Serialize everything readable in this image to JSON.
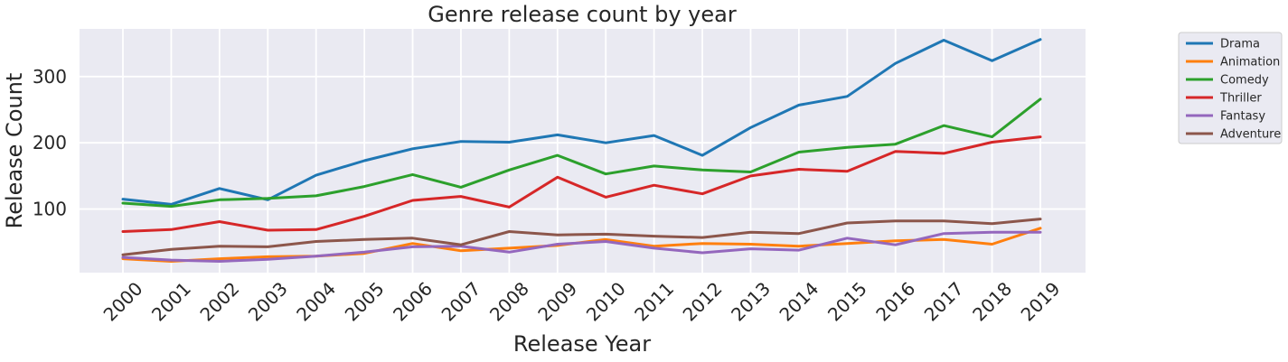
{
  "chart_data": {
    "type": "line",
    "title": "Genre release count by year",
    "xlabel": "Release Year",
    "ylabel": "Release Count",
    "categories": [
      "2000",
      "2001",
      "2002",
      "2003",
      "2004",
      "2005",
      "2006",
      "2007",
      "2008",
      "2009",
      "2010",
      "2011",
      "2012",
      "2013",
      "2014",
      "2015",
      "2016",
      "2017",
      "2018",
      "2019"
    ],
    "yticks": [
      100,
      200,
      300
    ],
    "ylim": [
      4,
      372
    ],
    "grid": true,
    "legend_position": "outside-top-right",
    "series": [
      {
        "name": "Drama",
        "color": "#1f77b4",
        "values": [
          115,
          107,
          131,
          114,
          151,
          173,
          191,
          202,
          201,
          212,
          200,
          211,
          181,
          223,
          257,
          270,
          320,
          355,
          324,
          356
        ]
      },
      {
        "name": "Animation",
        "color": "#ff7f0e",
        "values": [
          25,
          21,
          25,
          28,
          29,
          33,
          48,
          37,
          41,
          45,
          54,
          44,
          48,
          47,
          44,
          48,
          52,
          54,
          47,
          71
        ]
      },
      {
        "name": "Comedy",
        "color": "#2ca02c",
        "values": [
          109,
          104,
          114,
          116,
          120,
          134,
          152,
          133,
          159,
          181,
          153,
          165,
          159,
          156,
          186,
          193,
          198,
          226,
          209,
          266
        ]
      },
      {
        "name": "Thriller",
        "color": "#d62728",
        "values": [
          66,
          69,
          81,
          68,
          69,
          89,
          113,
          119,
          103,
          148,
          118,
          136,
          123,
          150,
          160,
          157,
          187,
          184,
          201,
          209
        ]
      },
      {
        "name": "Fantasy",
        "color": "#9467bd",
        "values": [
          27,
          23,
          21,
          24,
          29,
          35,
          43,
          44,
          35,
          47,
          51,
          41,
          34,
          40,
          38,
          56,
          46,
          63,
          65,
          65
        ]
      },
      {
        "name": "Adventure",
        "color": "#8c564b",
        "values": [
          31,
          39,
          44,
          43,
          51,
          54,
          56,
          46,
          66,
          61,
          62,
          59,
          57,
          65,
          63,
          79,
          82,
          82,
          78,
          85
        ]
      }
    ]
  }
}
